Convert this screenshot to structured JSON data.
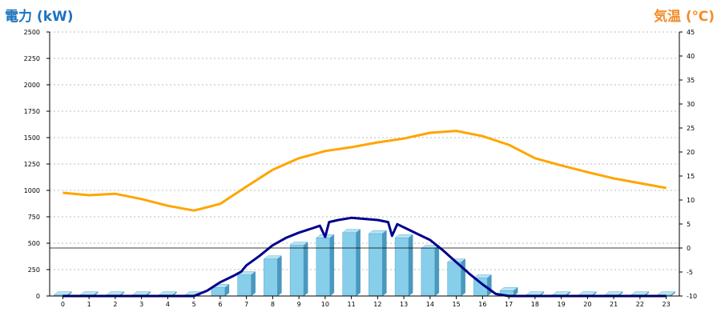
{
  "chart_data": {
    "type": "bar",
    "categories": [
      "0",
      "1",
      "2",
      "3",
      "4",
      "5",
      "6",
      "7",
      "8",
      "9",
      "10",
      "11",
      "12",
      "13",
      "14",
      "15",
      "16",
      "17",
      "18",
      "19",
      "20",
      "21",
      "22",
      "23"
    ],
    "left_axis": {
      "title": "電力 (kW)",
      "ylim": [
        0,
        2500
      ],
      "ticks": [
        "0",
        "250",
        "500",
        "750",
        "1000",
        "1250",
        "1500",
        "1750",
        "2000",
        "2250",
        "2500"
      ]
    },
    "right_axis": {
      "title": "気温 (℃)",
      "ylim": [
        -10,
        45
      ],
      "ticks": [
        "-10",
        "-5",
        "0",
        "5",
        "10",
        "15",
        "20",
        "25",
        "30",
        "35",
        "40",
        "45"
      ]
    },
    "grid": true,
    "series": [
      {
        "kind": "bar",
        "axis": "left",
        "color": "#87CEEB",
        "values": [
          10,
          10,
          10,
          10,
          10,
          10,
          80,
          200,
          350,
          480,
          550,
          600,
          590,
          550,
          450,
          320,
          170,
          50,
          10,
          10,
          10,
          10,
          10,
          10
        ]
      },
      {
        "kind": "line",
        "axis": "left",
        "color": "#00008B",
        "points": [
          [
            0,
            0
          ],
          [
            5.0,
            0
          ],
          [
            5.5,
            50
          ],
          [
            6.0,
            130
          ],
          [
            6.5,
            190
          ],
          [
            6.8,
            230
          ],
          [
            7.0,
            290
          ],
          [
            7.5,
            380
          ],
          [
            8.0,
            480
          ],
          [
            8.5,
            550
          ],
          [
            9.0,
            600
          ],
          [
            9.5,
            640
          ],
          [
            9.8,
            665
          ],
          [
            10.0,
            560
          ],
          [
            10.15,
            700
          ],
          [
            10.5,
            720
          ],
          [
            11.0,
            740
          ],
          [
            11.5,
            730
          ],
          [
            12.0,
            720
          ],
          [
            12.4,
            700
          ],
          [
            12.55,
            570
          ],
          [
            12.75,
            680
          ],
          [
            13.0,
            650
          ],
          [
            13.5,
            590
          ],
          [
            14.0,
            530
          ],
          [
            14.5,
            430
          ],
          [
            15.0,
            320
          ],
          [
            15.5,
            210
          ],
          [
            16.0,
            110
          ],
          [
            16.5,
            20
          ],
          [
            17.0,
            0
          ],
          [
            23.0,
            0
          ]
        ]
      },
      {
        "kind": "line",
        "axis": "right",
        "color": "#FFA500",
        "points": [
          [
            0,
            11.5
          ],
          [
            1,
            11.0
          ],
          [
            2,
            11.3
          ],
          [
            3,
            10.2
          ],
          [
            4,
            8.8
          ],
          [
            5,
            7.8
          ],
          [
            6,
            9.2
          ],
          [
            7,
            12.8
          ],
          [
            8,
            16.3
          ],
          [
            9,
            18.7
          ],
          [
            10,
            20.2
          ],
          [
            11,
            21.0
          ],
          [
            12,
            22.0
          ],
          [
            13,
            22.8
          ],
          [
            14,
            24.0
          ],
          [
            15,
            24.4
          ],
          [
            16,
            23.3
          ],
          [
            17,
            21.5
          ],
          [
            18,
            18.7
          ],
          [
            19,
            17.2
          ],
          [
            20,
            15.8
          ],
          [
            21,
            14.5
          ],
          [
            22,
            13.5
          ],
          [
            23,
            12.5
          ]
        ]
      }
    ]
  },
  "colors": {
    "left_title": "#1E73BE",
    "right_title": "#F28C28"
  }
}
